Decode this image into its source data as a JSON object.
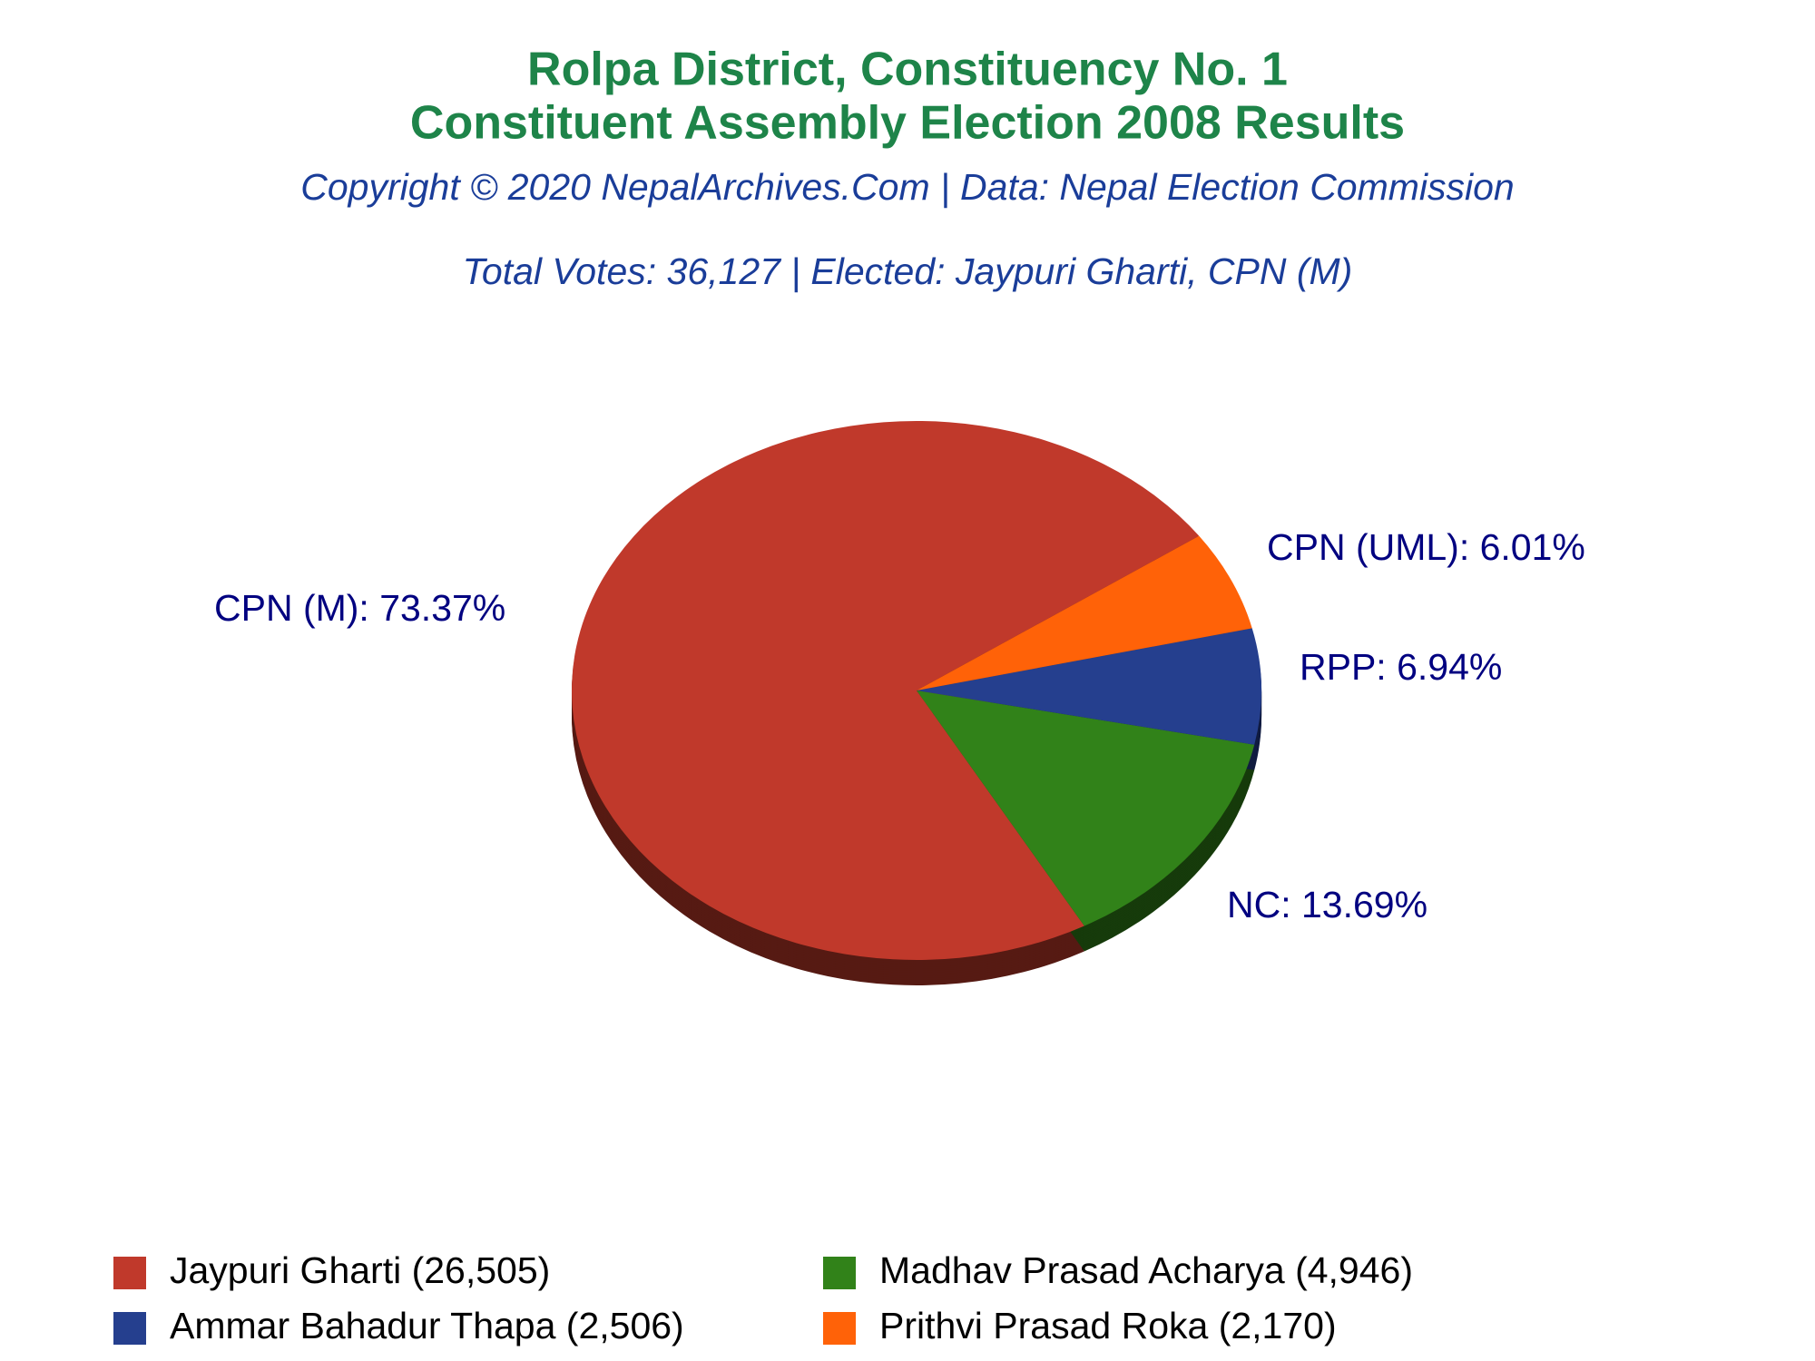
{
  "chart_data": {
    "type": "pie",
    "title": [
      "Rolpa District, Constituency No. 1",
      "Constituent Assembly Election 2008 Results"
    ],
    "subtitle": "Copyright © 2020 NepalArchives.Com | Data: Nepal Election Commission",
    "annotation": "Total Votes: 36,127 | Elected: Jaypuri Gharti, CPN (M)",
    "categories": [
      "Jaypuri Gharti (26,505)",
      "Madhav Prasad Acharya (4,946)",
      "Ammar Bahadur Thapa (2,506)",
      "Prithvi Prasad Roka (2,170)"
    ],
    "values": [
      73.37,
      13.69,
      6.94,
      6.01
    ],
    "value_labels": [
      "CPN (M): 73.37%",
      "NC: 13.69%",
      "RPP: 6.94%",
      "CPN (UML): 6.01%"
    ],
    "colors": [
      "#c0392b",
      "#318219",
      "#253f8e",
      "#ff6208"
    ]
  }
}
